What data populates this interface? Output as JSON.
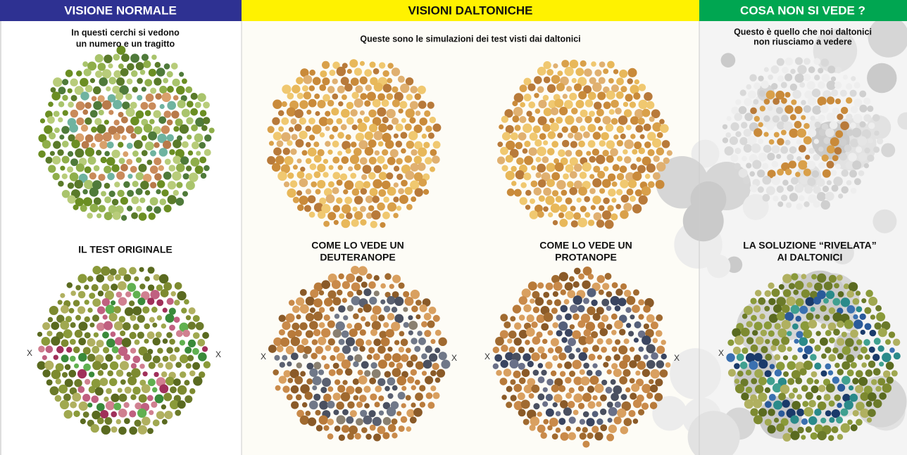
{
  "headers": {
    "normal": "VISIONE NORMALE",
    "daltonic": "VISIONI DALTONICHE",
    "hidden": "COSA NON SI VEDE ?"
  },
  "captions": {
    "normal": [
      "In questi cerchi si vedono",
      "un numero e un tragitto"
    ],
    "daltonic": "Queste sono le simulazioni dei test visti dai daltonici",
    "hidden": [
      "Questo è quello che noi daltonici",
      "non riusciamo a vedere"
    ]
  },
  "labels": {
    "original": "IL TEST ORIGINALE",
    "deuteranope": [
      "COME LO VEDE UN",
      "DEUTERANOPE"
    ],
    "protanope": [
      "COME LO VEDE UN",
      "PROTANOPE"
    ],
    "solution": [
      "LA SOLUZIONE “RIVELATA”",
      "AI DALTONICI"
    ]
  },
  "markers": {
    "x": "X"
  }
}
